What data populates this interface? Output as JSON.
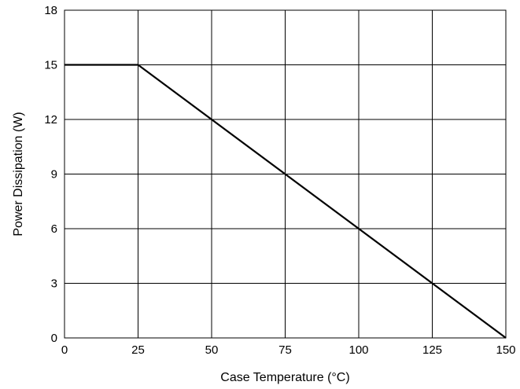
{
  "chart_data": {
    "type": "line",
    "title": "",
    "xlabel": "Case Temperature (°C)",
    "ylabel": "Power Dissipation  (W)",
    "xlim": [
      0,
      150
    ],
    "ylim": [
      0,
      18
    ],
    "xticks": [
      0,
      25,
      50,
      75,
      100,
      125,
      150
    ],
    "yticks": [
      0,
      3,
      6,
      9,
      12,
      15,
      18
    ],
    "xtick_labels": [
      "0",
      "25",
      "50",
      "75",
      "100",
      "125",
      "150"
    ],
    "ytick_labels": [
      "0",
      "3",
      "6",
      "9",
      "12",
      "15",
      "18"
    ],
    "grid": true,
    "legend": "none",
    "series": [
      {
        "x": [
          0,
          25,
          150
        ],
        "y": [
          15,
          15,
          0
        ]
      }
    ],
    "colors": {
      "line": "#000000",
      "grid": "#000000",
      "background": "#ffffff"
    }
  }
}
